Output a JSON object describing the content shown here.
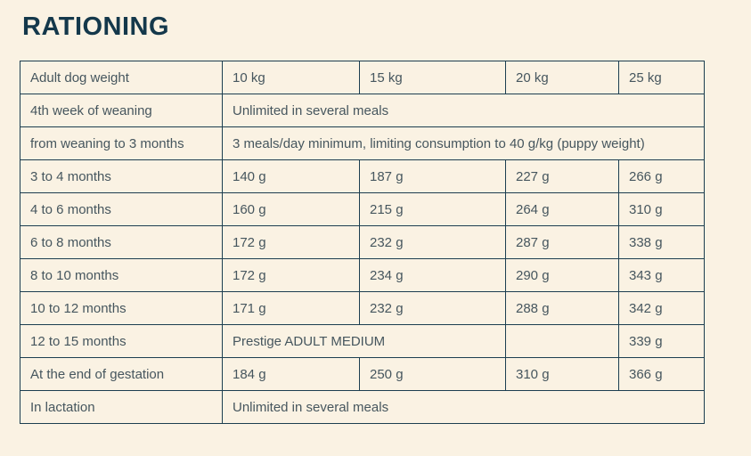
{
  "page": {
    "title": "RATIONING",
    "background_color": "#faf2e3",
    "title_color": "#14384b",
    "border_color": "#1c3e50",
    "text_color": "#46565e"
  },
  "table": {
    "columns": [
      "Adult dog weight",
      "10 kg",
      "15 kg",
      "20 kg",
      "25 kg"
    ],
    "rows": [
      {
        "label": "4th week of weaning",
        "cells": [
          {
            "text": "Unlimited in several meals",
            "colspan": 4
          }
        ]
      },
      {
        "label": "from weaning to 3 months",
        "cells": [
          {
            "text": "3 meals/day minimum, limiting consumption to 40 g/kg (puppy weight)",
            "colspan": 4
          }
        ]
      },
      {
        "label": "3 to 4 months",
        "cells": [
          {
            "text": "140 g"
          },
          {
            "text": "187 g"
          },
          {
            "text": "227 g"
          },
          {
            "text": "266 g"
          }
        ]
      },
      {
        "label": "4 to 6 months",
        "cells": [
          {
            "text": "160 g"
          },
          {
            "text": "215 g"
          },
          {
            "text": "264 g"
          },
          {
            "text": "310 g"
          }
        ]
      },
      {
        "label": "6 to 8 months",
        "cells": [
          {
            "text": "172 g"
          },
          {
            "text": "232 g"
          },
          {
            "text": "287 g"
          },
          {
            "text": "338 g"
          }
        ]
      },
      {
        "label": "8 to 10 months",
        "cells": [
          {
            "text": "172 g"
          },
          {
            "text": "234 g"
          },
          {
            "text": "290 g"
          },
          {
            "text": "343 g"
          }
        ]
      },
      {
        "label": "10 to 12 months",
        "cells": [
          {
            "text": "171 g"
          },
          {
            "text": "232 g"
          },
          {
            "text": "288 g"
          },
          {
            "text": "342 g"
          }
        ]
      },
      {
        "label": "12 to 15 months",
        "cells": [
          {
            "text": "Prestige ADULT MEDIUM",
            "colspan": 2
          },
          {
            "text": ""
          },
          {
            "text": "339 g"
          }
        ]
      },
      {
        "label": "At the end of gestation",
        "cells": [
          {
            "text": "184 g"
          },
          {
            "text": "250 g"
          },
          {
            "text": "310 g"
          },
          {
            "text": "366 g"
          }
        ]
      },
      {
        "label": "In lactation",
        "cells": [
          {
            "text": "Unlimited in several meals",
            "colspan": 4
          }
        ]
      }
    ]
  }
}
